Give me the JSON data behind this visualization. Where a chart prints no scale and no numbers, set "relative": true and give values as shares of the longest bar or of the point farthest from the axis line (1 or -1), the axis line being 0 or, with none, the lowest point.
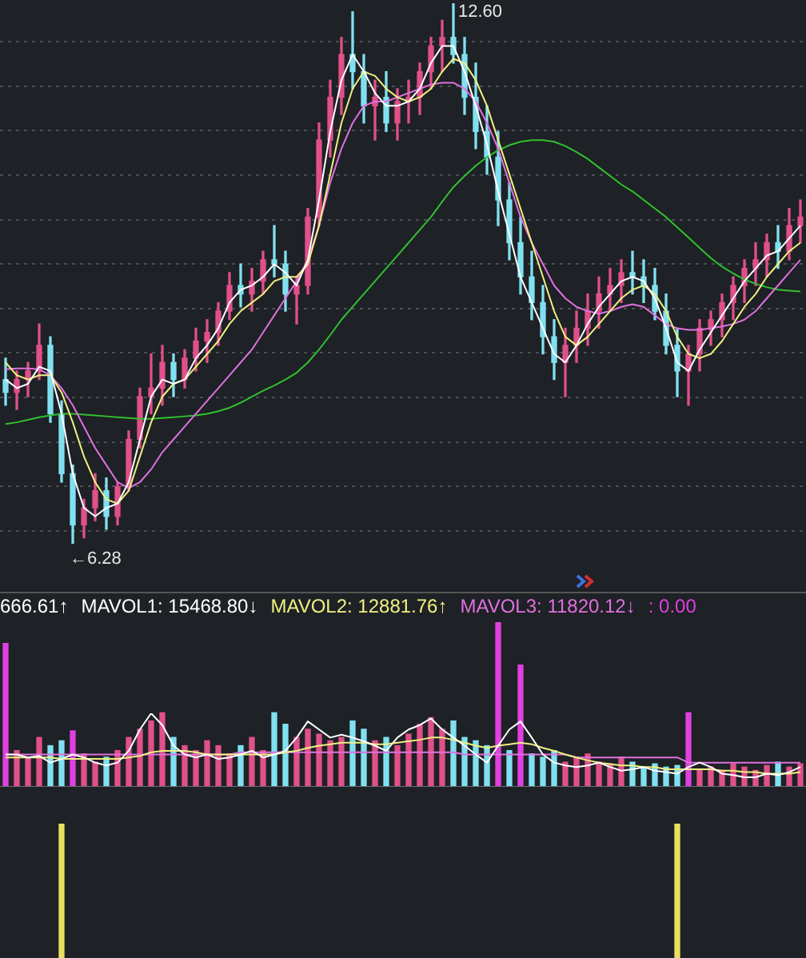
{
  "chart_data": [
    {
      "type": "candlestick",
      "categories": [
        null,
        null,
        null,
        null,
        null,
        null,
        null,
        null,
        null,
        null,
        null,
        null,
        null,
        null,
        null,
        null,
        null,
        null,
        null,
        null,
        null,
        null,
        null,
        null,
        null,
        null,
        null,
        null,
        null,
        null,
        null,
        null,
        null,
        null,
        null,
        null,
        null,
        null,
        null,
        null,
        null,
        null,
        null,
        null,
        null,
        null,
        null,
        null,
        null,
        null,
        null,
        null,
        null,
        null,
        null,
        null,
        null,
        null,
        null,
        null,
        null,
        null,
        null,
        null,
        null,
        null,
        null,
        null,
        null,
        null,
        null,
        null
      ],
      "ohlc": [
        [
          8.2,
          8.45,
          7.9,
          8.05
        ],
        [
          8.05,
          8.3,
          7.85,
          8.2
        ],
        [
          8.2,
          8.4,
          8.0,
          8.3
        ],
        [
          8.3,
          8.85,
          8.2,
          8.6
        ],
        [
          8.6,
          8.7,
          7.7,
          7.8
        ],
        [
          7.8,
          7.95,
          7.0,
          7.1
        ],
        [
          7.1,
          7.2,
          6.28,
          6.5
        ],
        [
          6.5,
          6.8,
          6.35,
          6.7
        ],
        [
          6.7,
          7.1,
          6.55,
          6.9
        ],
        [
          6.9,
          7.05,
          6.45,
          6.6
        ],
        [
          6.6,
          7.0,
          6.5,
          6.95
        ],
        [
          6.95,
          7.6,
          6.9,
          7.5
        ],
        [
          7.5,
          8.1,
          7.4,
          8.0
        ],
        [
          8.0,
          8.5,
          7.8,
          8.1
        ],
        [
          8.1,
          8.6,
          7.9,
          8.4
        ],
        [
          8.4,
          8.5,
          8.0,
          8.2
        ],
        [
          8.2,
          8.55,
          8.1,
          8.45
        ],
        [
          8.45,
          8.8,
          8.3,
          8.65
        ],
        [
          8.65,
          8.9,
          8.4,
          8.75
        ],
        [
          8.75,
          9.1,
          8.6,
          9.0
        ],
        [
          9.0,
          9.45,
          8.9,
          9.3
        ],
        [
          9.3,
          9.55,
          9.05,
          9.2
        ],
        [
          9.2,
          9.5,
          9.0,
          9.35
        ],
        [
          9.35,
          9.7,
          9.2,
          9.6
        ],
        [
          9.6,
          10.0,
          9.4,
          9.55
        ],
        [
          9.55,
          9.7,
          9.0,
          9.2
        ],
        [
          9.2,
          9.4,
          8.85,
          9.3
        ],
        [
          9.3,
          10.2,
          9.2,
          10.1
        ],
        [
          10.1,
          11.2,
          10.0,
          11.0
        ],
        [
          11.0,
          11.7,
          10.8,
          11.5
        ],
        [
          11.5,
          12.2,
          11.3,
          12.0
        ],
        [
          12.0,
          12.5,
          11.6,
          11.8
        ],
        [
          11.8,
          12.0,
          11.2,
          11.4
        ],
        [
          11.4,
          11.7,
          11.0,
          11.5
        ],
        [
          11.5,
          11.8,
          11.1,
          11.2
        ],
        [
          11.2,
          11.6,
          11.0,
          11.45
        ],
        [
          11.45,
          11.7,
          11.2,
          11.5
        ],
        [
          11.5,
          11.9,
          11.3,
          11.8
        ],
        [
          11.8,
          12.2,
          11.6,
          12.1
        ],
        [
          12.1,
          12.4,
          11.8,
          12.2
        ],
        [
          12.2,
          12.6,
          11.9,
          12.0
        ],
        [
          12.0,
          12.2,
          11.3,
          11.5
        ],
        [
          11.5,
          11.9,
          10.9,
          11.1
        ],
        [
          11.1,
          11.4,
          10.6,
          10.8
        ],
        [
          10.8,
          11.1,
          10.0,
          10.3
        ],
        [
          10.3,
          10.5,
          9.6,
          9.8
        ],
        [
          9.8,
          10.1,
          9.2,
          9.4
        ],
        [
          9.4,
          9.7,
          8.9,
          9.1
        ],
        [
          9.1,
          9.3,
          8.5,
          8.7
        ],
        [
          8.7,
          8.9,
          8.2,
          8.4
        ],
        [
          8.4,
          8.8,
          8.0,
          8.6
        ],
        [
          8.6,
          9.0,
          8.4,
          8.8
        ],
        [
          8.8,
          9.2,
          8.6,
          9.0
        ],
        [
          9.0,
          9.4,
          8.8,
          9.2
        ],
        [
          9.2,
          9.5,
          9.0,
          9.3
        ],
        [
          9.3,
          9.6,
          9.1,
          9.45
        ],
        [
          9.45,
          9.7,
          9.2,
          9.4
        ],
        [
          9.4,
          9.6,
          9.1,
          9.3
        ],
        [
          9.3,
          9.5,
          8.9,
          9.0
        ],
        [
          9.0,
          9.2,
          8.5,
          8.6
        ],
        [
          8.6,
          8.8,
          8.0,
          8.3
        ],
        [
          8.3,
          8.6,
          7.9,
          8.5
        ],
        [
          8.5,
          8.9,
          8.3,
          8.8
        ],
        [
          8.8,
          9.0,
          8.6,
          8.9
        ],
        [
          8.9,
          9.2,
          8.7,
          9.1
        ],
        [
          9.1,
          9.4,
          8.9,
          9.3
        ],
        [
          9.3,
          9.6,
          9.1,
          9.5
        ],
        [
          9.5,
          9.8,
          9.3,
          9.6
        ],
        [
          9.6,
          9.9,
          9.4,
          9.8
        ],
        [
          9.8,
          10.0,
          9.5,
          9.7
        ],
        [
          9.7,
          10.2,
          9.6,
          10.0
        ],
        [
          10.0,
          10.3,
          9.8,
          10.1
        ]
      ],
      "colors": [
        "#80e0f0",
        "#e0508a",
        "#e0508a",
        "#e0508a",
        "#80e0f0",
        "#80e0f0",
        "#80e0f0",
        "#e0508a",
        "#e0508a",
        "#80e0f0",
        "#e0508a",
        "#e0508a",
        "#e0508a",
        "#e0508a",
        "#e0508a",
        "#80e0f0",
        "#e0508a",
        "#e0508a",
        "#e0508a",
        "#e0508a",
        "#e0508a",
        "#80e0f0",
        "#e0508a",
        "#e0508a",
        "#80e0f0",
        "#80e0f0",
        "#e0508a",
        "#e0508a",
        "#e0508a",
        "#e0508a",
        "#e0508a",
        "#80e0f0",
        "#80e0f0",
        "#e0508a",
        "#80e0f0",
        "#e0508a",
        "#e0508a",
        "#e0508a",
        "#e0508a",
        "#e0508a",
        "#80e0f0",
        "#80e0f0",
        "#80e0f0",
        "#80e0f0",
        "#80e0f0",
        "#80e0f0",
        "#80e0f0",
        "#80e0f0",
        "#80e0f0",
        "#80e0f0",
        "#e0508a",
        "#e0508a",
        "#e0508a",
        "#e0508a",
        "#e0508a",
        "#e0508a",
        "#80e0f0",
        "#80e0f0",
        "#80e0f0",
        "#80e0f0",
        "#80e0f0",
        "#e0508a",
        "#e0508a",
        "#e0508a",
        "#e0508a",
        "#e0508a",
        "#e0508a",
        "#e0508a",
        "#e0508a",
        "#80e0f0",
        "#e0508a",
        "#e0508a"
      ],
      "series": [
        {
          "type": "line",
          "color": "#ffffff",
          "values": [
            8.2,
            8.1,
            8.15,
            8.35,
            8.3,
            7.8,
            7.1,
            6.7,
            6.6,
            6.7,
            6.75,
            7.0,
            7.5,
            8.0,
            8.2,
            8.15,
            8.2,
            8.45,
            8.6,
            8.8,
            9.1,
            9.25,
            9.3,
            9.4,
            9.55,
            9.45,
            9.3,
            9.6,
            10.3,
            11.1,
            11.7,
            12.0,
            11.8,
            11.55,
            11.4,
            11.4,
            11.45,
            11.6,
            11.9,
            12.1,
            12.1,
            11.8,
            11.4,
            10.95,
            10.4,
            9.9,
            9.4,
            9.1,
            8.8,
            8.5,
            8.4,
            8.6,
            8.85,
            9.05,
            9.2,
            9.35,
            9.4,
            9.35,
            9.15,
            8.8,
            8.4,
            8.3,
            8.55,
            8.75,
            8.95,
            9.15,
            9.35,
            9.5,
            9.65,
            9.7,
            9.85,
            10.0
          ]
        },
        {
          "type": "line",
          "color": "#f0f080",
          "values": [
            8.4,
            8.25,
            8.2,
            8.25,
            8.25,
            8.05,
            7.7,
            7.3,
            7.0,
            6.8,
            6.75,
            6.9,
            7.3,
            7.7,
            8.0,
            8.15,
            8.2,
            8.35,
            8.5,
            8.65,
            8.85,
            9.0,
            9.1,
            9.2,
            9.35,
            9.4,
            9.4,
            9.55,
            10.0,
            10.6,
            11.2,
            11.6,
            11.8,
            11.75,
            11.6,
            11.5,
            11.45,
            11.5,
            11.6,
            11.8,
            11.95,
            11.9,
            11.7,
            11.4,
            11.0,
            10.6,
            10.2,
            9.8,
            9.4,
            9.0,
            8.7,
            8.6,
            8.7,
            8.85,
            9.0,
            9.15,
            9.25,
            9.3,
            9.2,
            9.0,
            8.7,
            8.5,
            8.45,
            8.5,
            8.65,
            8.85,
            9.05,
            9.2,
            9.4,
            9.55,
            9.7,
            9.8
          ]
        },
        {
          "type": "line",
          "color": "#e070e0",
          "values": [
            8.32,
            8.33,
            8.33,
            8.32,
            8.25,
            8.1,
            7.9,
            7.65,
            7.4,
            7.2,
            7.0,
            6.93,
            7.0,
            7.15,
            7.35,
            7.5,
            7.65,
            7.8,
            7.95,
            8.1,
            8.25,
            8.4,
            8.55,
            8.75,
            8.95,
            9.15,
            9.35,
            9.6,
            10.0,
            10.5,
            10.9,
            11.2,
            11.4,
            11.45,
            11.45,
            11.5,
            11.55,
            11.6,
            11.65,
            11.67,
            11.67,
            11.6,
            11.45,
            11.2,
            10.9,
            10.5,
            10.1,
            9.8,
            9.55,
            9.3,
            9.15,
            9.05,
            9.0,
            8.97,
            9.0,
            9.05,
            9.08,
            9.05,
            8.95,
            8.85,
            8.8,
            8.78,
            8.78,
            8.8,
            8.82,
            8.85,
            8.9,
            9.0,
            9.15,
            9.3,
            9.45,
            9.6
          ]
        },
        {
          "type": "line",
          "color": "#30c030",
          "values": [
            7.68,
            7.7,
            7.73,
            7.76,
            7.78,
            7.8,
            7.8,
            7.79,
            7.78,
            7.77,
            7.76,
            7.75,
            7.74,
            7.74,
            7.75,
            7.76,
            7.77,
            7.78,
            7.8,
            7.83,
            7.87,
            7.93,
            8.0,
            8.07,
            8.13,
            8.2,
            8.28,
            8.4,
            8.55,
            8.72,
            8.9,
            9.05,
            9.2,
            9.35,
            9.5,
            9.65,
            9.8,
            9.95,
            10.1,
            10.28,
            10.45,
            10.58,
            10.7,
            10.8,
            10.88,
            10.94,
            10.98,
            11.0,
            11.0,
            10.98,
            10.93,
            10.86,
            10.78,
            10.68,
            10.58,
            10.48,
            10.4,
            10.3,
            10.2,
            10.1,
            9.98,
            9.86,
            9.74,
            9.62,
            9.52,
            9.44,
            9.37,
            9.32,
            9.28,
            9.25,
            9.24,
            9.23
          ]
        }
      ],
      "yticks": [
        {
          "value": 6.43,
          "label": null
        },
        {
          "value": 6.95,
          "label": null
        },
        {
          "value": 7.47,
          "label": null
        },
        {
          "value": 7.99,
          "label": null
        },
        {
          "value": 8.51,
          "label": null
        },
        {
          "value": 9.03,
          "label": null
        },
        {
          "value": 9.55,
          "label": null
        },
        {
          "value": 10.07,
          "label": null
        },
        {
          "value": 10.59,
          "label": null
        },
        {
          "value": 11.11,
          "label": null
        },
        {
          "value": 11.63,
          "label": null
        },
        {
          "value": 12.15,
          "label": null
        }
      ],
      "grid": "y",
      "tick_labels": false,
      "annotations": [
        "12.60",
        "←6.28"
      ]
    },
    {
      "type": "bar",
      "relative": true,
      "categories": [
        null,
        null,
        null,
        null,
        null,
        null,
        null,
        null,
        null,
        null,
        null,
        null,
        null,
        null,
        null,
        null,
        null,
        null,
        null,
        null,
        null,
        null,
        null,
        null,
        null,
        null,
        null,
        null,
        null,
        null,
        null,
        null,
        null,
        null,
        null,
        null,
        null,
        null,
        null,
        null,
        null,
        null,
        null,
        null,
        null,
        null,
        null,
        null,
        null,
        null,
        null,
        null,
        null,
        null,
        null,
        null,
        null,
        null,
        null,
        null,
        null,
        null,
        null,
        null,
        null,
        null,
        null,
        null,
        null,
        null,
        null,
        null
      ],
      "colors": [
        "#e040e0",
        "#e0508a",
        "#e0508a",
        "#e0508a",
        "#80e0f0",
        "#80e0f0",
        "#e040e0",
        "#e0508a",
        "#e0508a",
        "#80e0f0",
        "#e0508a",
        "#e0508a",
        "#e0508a",
        "#e0508a",
        "#e0508a",
        "#80e0f0",
        "#e0508a",
        "#e0508a",
        "#e0508a",
        "#e0508a",
        "#e0508a",
        "#80e0f0",
        "#e0508a",
        "#e0508a",
        "#80e0f0",
        "#80e0f0",
        "#e0508a",
        "#e0508a",
        "#e0508a",
        "#e0508a",
        "#e0508a",
        "#80e0f0",
        "#80e0f0",
        "#e0508a",
        "#80e0f0",
        "#e0508a",
        "#e0508a",
        "#e0508a",
        "#e0508a",
        "#e0508a",
        "#80e0f0",
        "#80e0f0",
        "#80e0f0",
        "#80e0f0",
        "#e040e0",
        "#80e0f0",
        "#e040e0",
        "#80e0f0",
        "#80e0f0",
        "#80e0f0",
        "#e0508a",
        "#e0508a",
        "#e0508a",
        "#e0508a",
        "#e0508a",
        "#e0508a",
        "#80e0f0",
        "#80e0f0",
        "#80e0f0",
        "#80e0f0",
        "#80e0f0",
        "#e040e0",
        "#e0508a",
        "#e0508a",
        "#e0508a",
        "#e0508a",
        "#e0508a",
        "#e0508a",
        "#e0508a",
        "#80e0f0",
        "#e0508a",
        "#e0508a"
      ],
      "values": [
        0.87,
        0.22,
        0.18,
        0.3,
        0.25,
        0.28,
        0.34,
        0.2,
        0.15,
        0.18,
        0.22,
        0.3,
        0.35,
        0.4,
        0.45,
        0.3,
        0.25,
        0.22,
        0.28,
        0.25,
        0.2,
        0.25,
        0.3,
        0.22,
        0.45,
        0.38,
        0.3,
        0.35,
        0.32,
        0.28,
        0.3,
        0.4,
        0.35,
        0.28,
        0.3,
        0.25,
        0.32,
        0.38,
        0.42,
        0.35,
        0.4,
        0.3,
        0.28,
        0.25,
        1,
        0.22,
        0.74,
        0.2,
        0.18,
        0.22,
        0.15,
        0.18,
        0.2,
        0.15,
        0.14,
        0.18,
        0.15,
        0.12,
        0.14,
        0.12,
        0.13,
        0.45,
        0.1,
        0.12,
        0.1,
        0.14,
        0.12,
        0.1,
        0.13,
        0.15,
        0.12,
        0.14
      ],
      "annotations": [
        "666.61↑",
        ": 0.00"
      ]
    },
    {
      "type": "line",
      "relative": true,
      "categories": [
        null,
        null,
        null,
        null,
        null,
        null,
        null,
        null,
        null,
        null,
        null,
        null,
        null,
        null,
        null,
        null,
        null,
        null,
        null,
        null,
        null,
        null,
        null,
        null,
        null,
        null,
        null,
        null,
        null,
        null,
        null,
        null,
        null,
        null,
        null,
        null,
        null,
        null,
        null,
        null,
        null,
        null,
        null,
        null,
        null,
        null,
        null,
        null,
        null,
        null,
        null,
        null,
        null,
        null,
        null,
        null,
        null,
        null,
        null,
        null,
        null,
        null,
        null,
        null,
        null,
        null,
        null,
        null,
        null,
        null,
        null,
        null
      ],
      "series": [
        {
          "color": "#ffffff",
          "values": [
            0.44,
            0.44,
            0.4,
            0.42,
            0.33,
            0.38,
            0.44,
            0.4,
            0.33,
            0.29,
            0.33,
            0.49,
            0.78,
            1,
            0.84,
            0.56,
            0.44,
            0.4,
            0.44,
            0.38,
            0.4,
            0.44,
            0.49,
            0.4,
            0.44,
            0.49,
            0.67,
            0.89,
            0.78,
            0.67,
            0.71,
            0.67,
            0.62,
            0.56,
            0.49,
            0.67,
            0.78,
            0.84,
            0.93,
            0.78,
            0.67,
            0.56,
            0.44,
            0.33,
            0.56,
            0.78,
            0.89,
            0.67,
            0.44,
            0.33,
            0.29,
            0.27,
            0.29,
            0.33,
            0.27,
            0.22,
            0.24,
            0.27,
            0.22,
            0.2,
            0.18,
            0.27,
            0.33,
            0.27,
            0.18,
            0.16,
            0.13,
            0.13,
            0.18,
            0.16,
            0.2,
            0.27
          ]
        },
        {
          "color": "#f0f080",
          "values": [
            0.4,
            0.4,
            0.4,
            0.4,
            0.4,
            0.38,
            0.38,
            0.38,
            0.38,
            0.38,
            0.38,
            0.4,
            0.42,
            0.47,
            0.49,
            0.49,
            0.49,
            0.47,
            0.44,
            0.44,
            0.44,
            0.44,
            0.44,
            0.44,
            0.44,
            0.47,
            0.49,
            0.53,
            0.56,
            0.58,
            0.6,
            0.6,
            0.6,
            0.58,
            0.58,
            0.6,
            0.62,
            0.64,
            0.67,
            0.67,
            0.64,
            0.6,
            0.56,
            0.53,
            0.56,
            0.58,
            0.6,
            0.58,
            0.53,
            0.49,
            0.44,
            0.4,
            0.36,
            0.33,
            0.31,
            0.29,
            0.29,
            0.27,
            0.27,
            0.24,
            0.24,
            0.24,
            0.24,
            0.24,
            0.22,
            0.22,
            0.2,
            0.2,
            0.18,
            0.18,
            0.18,
            0.2
          ]
        },
        {
          "color": "#e070e0",
          "values": [
            0.44,
            0.44,
            0.44,
            0.44,
            0.44,
            0.44,
            0.44,
            0.44,
            0.44,
            0.44,
            0.44,
            0.44,
            0.44,
            0.44,
            0.44,
            0.44,
            0.44,
            0.44,
            0.44,
            0.44,
            0.44,
            0.47,
            0.47,
            0.47,
            0.47,
            0.47,
            0.47,
            0.47,
            0.47,
            0.47,
            0.47,
            0.47,
            0.47,
            0.47,
            0.47,
            0.47,
            0.47,
            0.47,
            0.47,
            0.47,
            0.47,
            0.44,
            0.44,
            0.44,
            0.44,
            0.44,
            0.44,
            0.44,
            0.44,
            0.44,
            0.44,
            0.4,
            0.4,
            0.4,
            0.4,
            0.4,
            0.4,
            0.4,
            0.4,
            0.4,
            0.4,
            0.33,
            0.33,
            0.33,
            0.33,
            0.33,
            0.33,
            0.33,
            0.33,
            0.33,
            0.33,
            0.33
          ]
        }
      ],
      "annotations": [
        "MAVOL1: 15468.80↓",
        "MAVOL2: 12881.76↑",
        "MAVOL3: 11820.12↓"
      ]
    },
    {
      "type": "bar",
      "relative": true,
      "categories": [
        null,
        null,
        null,
        null,
        null,
        null,
        null,
        null,
        null,
        null,
        null,
        null,
        null,
        null,
        null,
        null,
        null,
        null,
        null,
        null,
        null,
        null,
        null,
        null,
        null,
        null,
        null,
        null,
        null,
        null,
        null,
        null,
        null,
        null,
        null,
        null,
        null,
        null,
        null,
        null,
        null,
        null,
        null,
        null,
        null,
        null,
        null,
        null,
        null,
        null,
        null,
        null,
        null,
        null,
        null,
        null,
        null,
        null,
        null,
        null,
        null,
        null,
        null,
        null,
        null,
        null,
        null,
        null,
        null,
        null,
        null,
        null
      ],
      "color": "#e8e060",
      "values": [
        null,
        null,
        null,
        null,
        null,
        1,
        null,
        null,
        null,
        null,
        null,
        null,
        null,
        null,
        null,
        null,
        null,
        null,
        null,
        null,
        null,
        null,
        null,
        null,
        null,
        null,
        null,
        null,
        null,
        null,
        null,
        null,
        null,
        null,
        null,
        null,
        null,
        null,
        null,
        null,
        null,
        null,
        null,
        null,
        null,
        null,
        null,
        null,
        null,
        null,
        null,
        null,
        null,
        null,
        null,
        null,
        null,
        null,
        null,
        null,
        1,
        null,
        null,
        null,
        null,
        null,
        null,
        null,
        null,
        null,
        null,
        null
      ]
    }
  ]
}
